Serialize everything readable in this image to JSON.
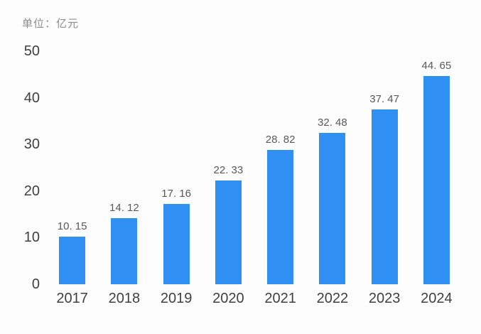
{
  "chart_data": {
    "type": "bar",
    "title": "单位：亿元",
    "categories": [
      "2017",
      "2018",
      "2019",
      "2020",
      "2021",
      "2022",
      "2023",
      "2024"
    ],
    "values": [
      10.15,
      14.12,
      17.16,
      22.33,
      28.82,
      32.48,
      37.47,
      44.65
    ],
    "value_labels": [
      "10. 15",
      "14. 12",
      "17. 16",
      "22. 33",
      "28. 82",
      "32. 48",
      "37. 47",
      "44. 65"
    ],
    "xlabel": "",
    "ylabel": "",
    "ylim": [
      0,
      50
    ],
    "yticks": [
      0,
      10,
      20,
      30,
      40,
      50
    ],
    "grid": false,
    "legend_position": "none",
    "bar_color": "#2f8ff2",
    "label_color": "#595959",
    "axis_color": "#404040",
    "unit_label_color": "#8c8c8c",
    "background_color": "#fdfdfd"
  }
}
